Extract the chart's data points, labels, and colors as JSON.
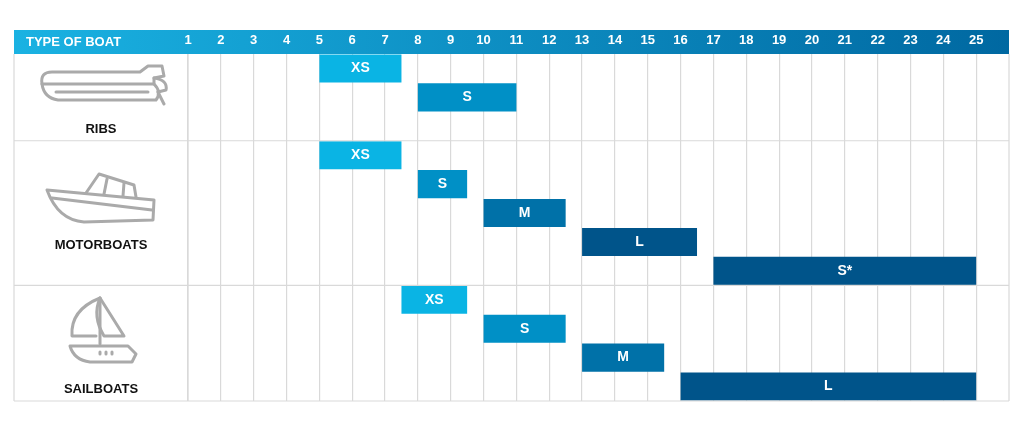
{
  "chart_data": {
    "type": "bar",
    "orientation": "horizontal",
    "ylabel": "TYPE OF BOAT",
    "categories": [
      null,
      null,
      "RIBS",
      null,
      null,
      null,
      "MOTORBOATS",
      null,
      null,
      null,
      null,
      "SAILBOATS"
    ],
    "base": [
      5,
      8,
      null,
      5,
      8,
      10,
      13,
      17,
      7.5,
      10,
      13,
      16
    ],
    "values": [
      2.5,
      3,
      null,
      2.5,
      1.5,
      2.5,
      3.5,
      8,
      2,
      2.5,
      2.5,
      9
    ],
    "colors": [
      "#0ab4e4",
      "#0090c6",
      null,
      "#0ab4e4",
      "#0090c6",
      "#0071a8",
      "#00548a",
      "#00548a",
      "#0ab4e4",
      "#0090c6",
      "#0071a8",
      "#00548a"
    ],
    "value_labels": [
      "XS",
      "S",
      null,
      "XS",
      "S",
      "M",
      "L",
      "S*",
      "XS",
      "S",
      "M",
      "L"
    ],
    "xlim": [
      1,
      26
    ],
    "xticks": [
      1,
      2,
      3,
      4,
      5,
      6,
      7,
      8,
      9,
      10,
      11,
      12,
      13,
      14,
      15,
      16,
      17,
      18,
      19,
      20,
      21,
      22,
      23,
      24,
      25
    ],
    "grid": "x"
  }
}
